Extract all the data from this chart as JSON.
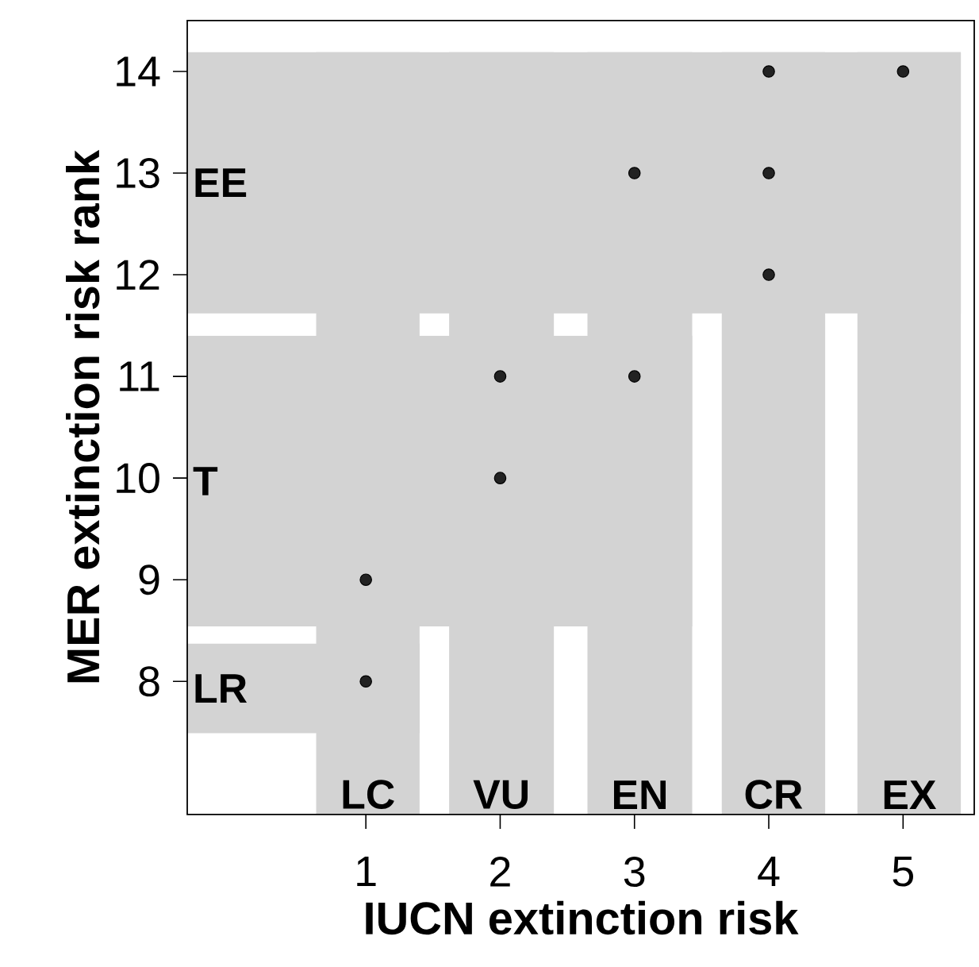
{
  "chart_data": {
    "type": "scatter",
    "xlabel": "IUCN extinction risk",
    "ylabel": "MER extinction risk rank",
    "x": [
      1,
      1,
      2,
      2,
      3,
      3,
      4,
      4,
      4,
      5
    ],
    "series": [
      {
        "color": "#222222",
        "values": [
          8,
          9,
          10,
          11,
          11,
          13,
          12,
          13,
          14,
          14
        ]
      }
    ],
    "xlim": [
      -0.33,
      5.53
    ],
    "ylim": [
      6.69,
      14.5
    ],
    "xticks": [
      1,
      2,
      3,
      4,
      5
    ],
    "yticks": [
      8,
      9,
      10,
      11,
      12,
      13,
      14
    ],
    "marker": "circle",
    "grid": false,
    "legend": false,
    "bands": [
      {
        "axis": "x",
        "from": 0.63,
        "to": 1.4,
        "label": "LC",
        "color": "#d3d3d3"
      },
      {
        "axis": "x",
        "from": 1.62,
        "to": 2.4,
        "label": "VU",
        "color": "#d3d3d3"
      },
      {
        "axis": "x",
        "from": 2.65,
        "to": 3.43,
        "label": "EN",
        "color": "#d3d3d3"
      },
      {
        "axis": "x",
        "from": 3.65,
        "to": 4.42,
        "label": "CR",
        "color": "#d3d3d3"
      },
      {
        "axis": "x",
        "from": 4.66,
        "to": 5.43,
        "label": "EX",
        "color": "#d3d3d3"
      },
      {
        "axis": "y",
        "from": 11.62,
        "to": 14.19,
        "label": "EE",
        "color": "#d3d3d3"
      },
      {
        "axis": "y",
        "from": 8.54,
        "to": 11.4,
        "label": "T",
        "color": "#d3d3d3"
      },
      {
        "axis": "y",
        "from": 7.49,
        "to": 8.37,
        "label": "LR",
        "color": "#d3d3d3"
      }
    ]
  }
}
